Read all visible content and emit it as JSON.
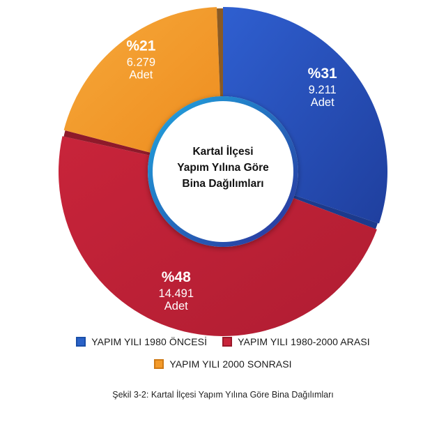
{
  "chart_data": {
    "type": "pie",
    "center_title_lines": [
      "Kartal İlçesi",
      "Yapım Yılına Göre",
      "Bina Dağılımları"
    ],
    "slices": [
      {
        "name": "YAPIM YILI 1980 ÖNCESİ",
        "percent_label": "%31",
        "value": 9211,
        "value_label": "9.211",
        "unit_label": "Adet",
        "color": "#2a4fb0",
        "shade": "#1c3a8c",
        "swatch_border": "#1f5fc9"
      },
      {
        "name": "YAPIM YILI 1980-2000 ARASI",
        "percent_label": "%48",
        "value": 14491,
        "value_label": "14.491",
        "unit_label": "Adet",
        "color": "#c8243a",
        "shade": "#8e1a2a",
        "swatch_border": "#a3192d"
      },
      {
        "name": "YAPIM YILI 2000 SONRASI",
        "percent_label": "%21",
        "value": 6279,
        "value_label": "6.279",
        "unit_label": "Adet",
        "color": "#f39a2a",
        "shade": "#8a5a24",
        "swatch_border": "#d07a17"
      }
    ],
    "legend_placement": "bottom"
  },
  "caption": "Şekil 3-2: Kartal İlçesi Yapım Yılına Göre Bina Dağılımları"
}
